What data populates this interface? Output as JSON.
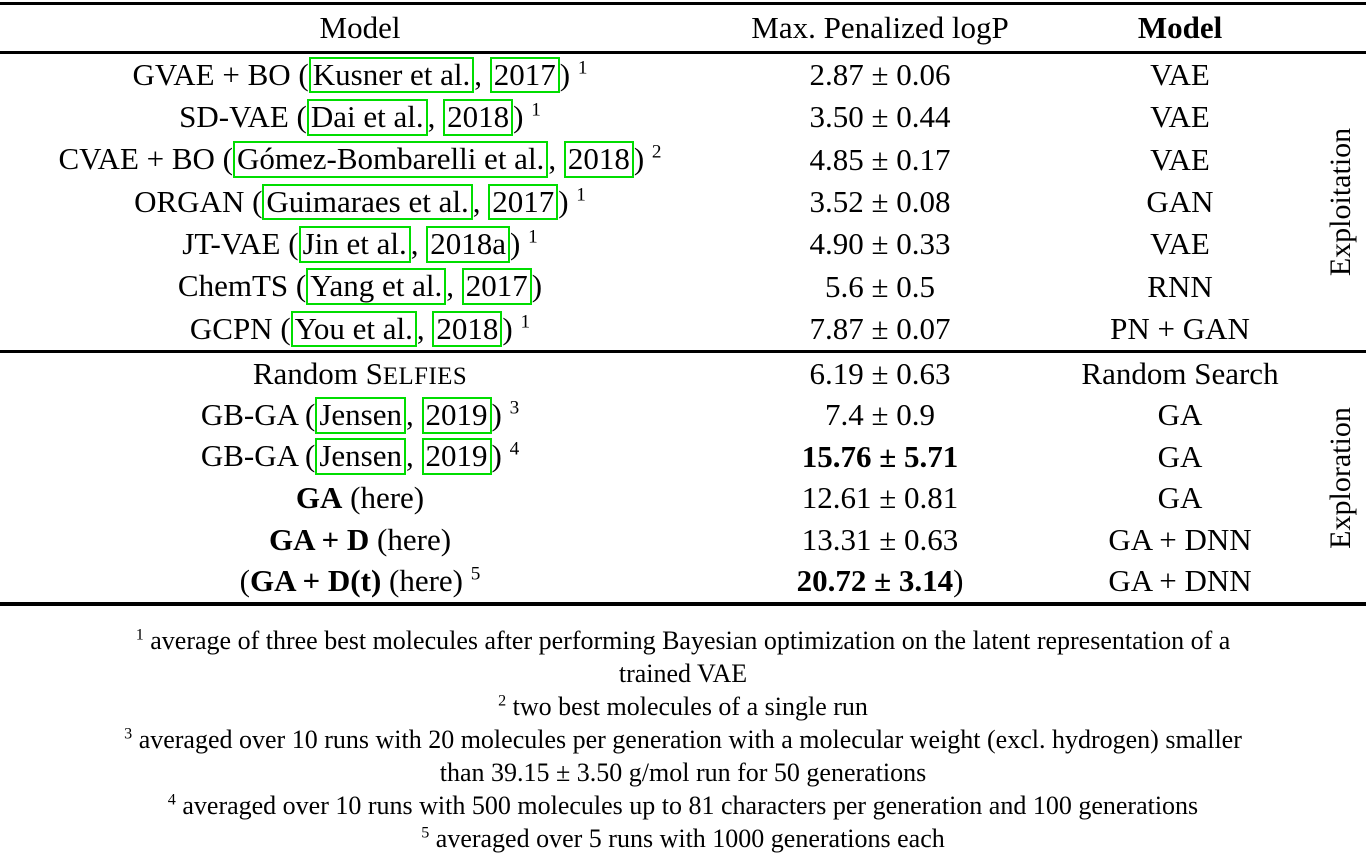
{
  "colors": {
    "link_green": "#00dd00",
    "text": "#000000",
    "background": "#ffffff"
  },
  "table": {
    "headers": {
      "model": "Model",
      "logp": "Max. Penalized logP",
      "model_type": "Model"
    },
    "sections": [
      {
        "group_label": "Exploitation",
        "rows": [
          {
            "model_parts": [
              {
                "t": "txt",
                "s": "GVAE + BO ("
              },
              {
                "t": "box",
                "s": "Kusner et al."
              },
              {
                "t": "txt",
                "s": ", "
              },
              {
                "t": "box",
                "s": "2017"
              },
              {
                "t": "txt",
                "s": ") "
              },
              {
                "t": "sup",
                "s": "1"
              }
            ],
            "value_parts": [
              {
                "t": "txt",
                "s": "2.87 ± 0.06"
              }
            ],
            "type": "VAE"
          },
          {
            "model_parts": [
              {
                "t": "txt",
                "s": "SD-VAE ("
              },
              {
                "t": "box",
                "s": "Dai et al."
              },
              {
                "t": "txt",
                "s": ", "
              },
              {
                "t": "box",
                "s": "2018"
              },
              {
                "t": "txt",
                "s": ") "
              },
              {
                "t": "sup",
                "s": "1"
              }
            ],
            "value_parts": [
              {
                "t": "txt",
                "s": "3.50 ± 0.44"
              }
            ],
            "type": "VAE"
          },
          {
            "model_parts": [
              {
                "t": "txt",
                "s": "CVAE + BO ("
              },
              {
                "t": "box",
                "s": "Gómez-Bombarelli et al."
              },
              {
                "t": "txt",
                "s": ", "
              },
              {
                "t": "box",
                "s": "2018"
              },
              {
                "t": "txt",
                "s": ") "
              },
              {
                "t": "sup",
                "s": "2"
              }
            ],
            "value_parts": [
              {
                "t": "txt",
                "s": "4.85 ± 0.17"
              }
            ],
            "type": "VAE"
          },
          {
            "model_parts": [
              {
                "t": "txt",
                "s": "ORGAN ("
              },
              {
                "t": "box",
                "s": "Guimaraes et al."
              },
              {
                "t": "txt",
                "s": ", "
              },
              {
                "t": "box",
                "s": "2017"
              },
              {
                "t": "txt",
                "s": ") "
              },
              {
                "t": "sup",
                "s": "1"
              }
            ],
            "value_parts": [
              {
                "t": "txt",
                "s": "3.52 ± 0.08"
              }
            ],
            "type": "GAN"
          },
          {
            "model_parts": [
              {
                "t": "txt",
                "s": "JT-VAE ("
              },
              {
                "t": "box",
                "s": "Jin et al."
              },
              {
                "t": "txt",
                "s": ", "
              },
              {
                "t": "box",
                "s": "2018a"
              },
              {
                "t": "txt",
                "s": ") "
              },
              {
                "t": "sup",
                "s": "1"
              }
            ],
            "value_parts": [
              {
                "t": "txt",
                "s": "4.90 ± 0.33"
              }
            ],
            "type": "VAE"
          },
          {
            "model_parts": [
              {
                "t": "txt",
                "s": "ChemTS ("
              },
              {
                "t": "box",
                "s": "Yang et al."
              },
              {
                "t": "txt",
                "s": ", "
              },
              {
                "t": "box",
                "s": "2017"
              },
              {
                "t": "txt",
                "s": ")"
              }
            ],
            "value_parts": [
              {
                "t": "txt",
                "s": "5.6 ± 0.5"
              }
            ],
            "type": "RNN"
          },
          {
            "model_parts": [
              {
                "t": "txt",
                "s": "GCPN ("
              },
              {
                "t": "box",
                "s": "You et al."
              },
              {
                "t": "txt",
                "s": ", "
              },
              {
                "t": "box",
                "s": "2018"
              },
              {
                "t": "txt",
                "s": ") "
              },
              {
                "t": "sup",
                "s": "1"
              }
            ],
            "value_parts": [
              {
                "t": "txt",
                "s": "7.87 ± 0.07"
              }
            ],
            "type": "PN + GAN"
          }
        ]
      },
      {
        "group_label": "Exploration",
        "rows": [
          {
            "model_parts": [
              {
                "t": "txt",
                "s": "Random S"
              },
              {
                "t": "sc",
                "s": "ELFIES"
              }
            ],
            "value_parts": [
              {
                "t": "txt",
                "s": "6.19 ± 0.63"
              }
            ],
            "type": "Random Search"
          },
          {
            "model_parts": [
              {
                "t": "txt",
                "s": "GB-GA ("
              },
              {
                "t": "box",
                "s": "Jensen"
              },
              {
                "t": "txt",
                "s": ", "
              },
              {
                "t": "box",
                "s": "2019"
              },
              {
                "t": "txt",
                "s": ") "
              },
              {
                "t": "sup",
                "s": "3"
              }
            ],
            "value_parts": [
              {
                "t": "txt",
                "s": "7.4 ± 0.9"
              }
            ],
            "type": "GA"
          },
          {
            "model_parts": [
              {
                "t": "txt",
                "s": "GB-GA ("
              },
              {
                "t": "box",
                "s": "Jensen"
              },
              {
                "t": "txt",
                "s": ", "
              },
              {
                "t": "box",
                "s": "2019"
              },
              {
                "t": "txt",
                "s": ") "
              },
              {
                "t": "sup",
                "s": "4"
              }
            ],
            "value_parts": [
              {
                "t": "b",
                "s": "15.76 ± 5.71"
              }
            ],
            "type": "GA"
          },
          {
            "model_parts": [
              {
                "t": "b",
                "s": "GA"
              },
              {
                "t": "txt",
                "s": " (here)"
              }
            ],
            "value_parts": [
              {
                "t": "txt",
                "s": "12.61 ± 0.81"
              }
            ],
            "type": "GA"
          },
          {
            "model_parts": [
              {
                "t": "b",
                "s": "GA + D"
              },
              {
                "t": "txt",
                "s": " (here)"
              }
            ],
            "value_parts": [
              {
                "t": "txt",
                "s": "13.31 ± 0.63"
              }
            ],
            "type": "GA + DNN"
          },
          {
            "model_parts": [
              {
                "t": "txt",
                "s": "("
              },
              {
                "t": "b",
                "s": "GA + D(t)"
              },
              {
                "t": "txt",
                "s": " (here) "
              },
              {
                "t": "sup",
                "s": "5"
              }
            ],
            "value_parts": [
              {
                "t": "b",
                "s": "20.72 ± 3.14"
              },
              {
                "t": "txt",
                "s": ")"
              }
            ],
            "type": "GA + DNN"
          }
        ]
      }
    ]
  },
  "footnotes": [
    {
      "marker": "1",
      "lines": [
        "average of three best molecules after performing Bayesian optimization on the latent representation of a",
        "trained VAE"
      ]
    },
    {
      "marker": "2",
      "lines": [
        "two best molecules of a single run"
      ]
    },
    {
      "marker": "3",
      "lines": [
        "averaged over 10 runs with 20 molecules per generation with a molecular weight (excl. hydrogen) smaller",
        "than 39.15 ± 3.50 g/mol run for 50 generations"
      ]
    },
    {
      "marker": "4",
      "lines": [
        "averaged over 10 runs with 500 molecules up to 81 characters per generation and 100 generations"
      ]
    },
    {
      "marker": "5",
      "lines": [
        "averaged over 5 runs with 1000 generations each"
      ]
    }
  ]
}
